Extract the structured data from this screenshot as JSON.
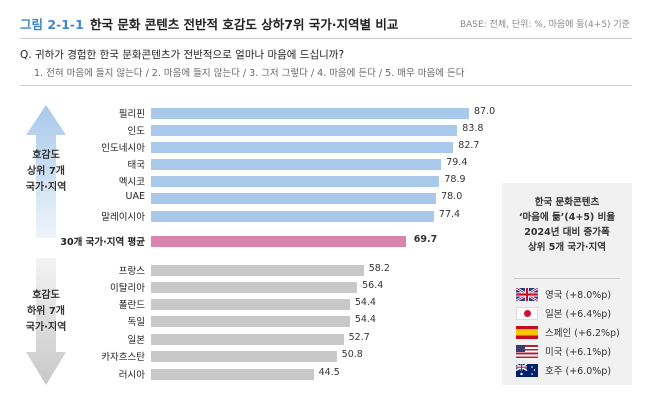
{
  "header": {
    "figure_number": "그림 2-1-1",
    "title": "한국 문화 콘텐츠 전반적 호감도 상하7위 국가·지역별 비교",
    "base_note": "BASE: 전체, 단위: %, 마음에 듦(4+5) 기준"
  },
  "question": {
    "text": "Q. 귀하가 경험한 한국 문화콘텐츠가 전반적으로 얼마나 마음에 드십니까?",
    "scale": "1. 전혀 마음에 들지 않는다 / 2. 마음에 들지 않는다 / 3. 그저 그렇다 / 4. 마음에 든다 / 5. 매우 마음에 든다"
  },
  "groups": {
    "top": "호감도\n상위 7개\n국가·지역",
    "bottom": "호감도\n하위 7개\n국가·지역"
  },
  "colors": {
    "top": "#a9c9ea",
    "average": "#d984ad",
    "bottom": "#c8c8c8",
    "accent": "#3f87c8"
  },
  "chart_data": {
    "type": "bar",
    "orientation": "horizontal",
    "categories": [
      "필리핀",
      "인도",
      "인도네시아",
      "태국",
      "멕시코",
      "UAE",
      "말레이시아",
      "30개 국가·지역 평균",
      "프랑스",
      "이탈리아",
      "폴란드",
      "독일",
      "일본",
      "카자흐스탄",
      "러시아"
    ],
    "values": [
      87.0,
      83.8,
      82.7,
      79.4,
      78.9,
      78.0,
      77.4,
      69.7,
      58.2,
      56.4,
      54.4,
      54.4,
      52.7,
      50.8,
      44.5
    ],
    "groups": [
      "top",
      "top",
      "top",
      "top",
      "top",
      "top",
      "top",
      "average",
      "bottom",
      "bottom",
      "bottom",
      "bottom",
      "bottom",
      "bottom",
      "bottom"
    ],
    "xlim": [
      0,
      100
    ],
    "grid": false
  },
  "side_box": {
    "title": "한국 문화콘텐츠\n‘마음에 듦’(4+5) 비율\n2024년 대비 증가폭\n상위 5개 국가·지역",
    "items": [
      {
        "icon": "uk-flag-icon",
        "label": "영국 (+8.0%p)"
      },
      {
        "icon": "japan-flag-icon",
        "label": "일본 (+6.4%p)"
      },
      {
        "icon": "spain-flag-icon",
        "label": "스페인 (+6.2%p)"
      },
      {
        "icon": "usa-flag-icon",
        "label": "미국 (+6.1%p)"
      },
      {
        "icon": "australia-flag-icon",
        "label": "호주 (+6.0%p)"
      }
    ]
  }
}
